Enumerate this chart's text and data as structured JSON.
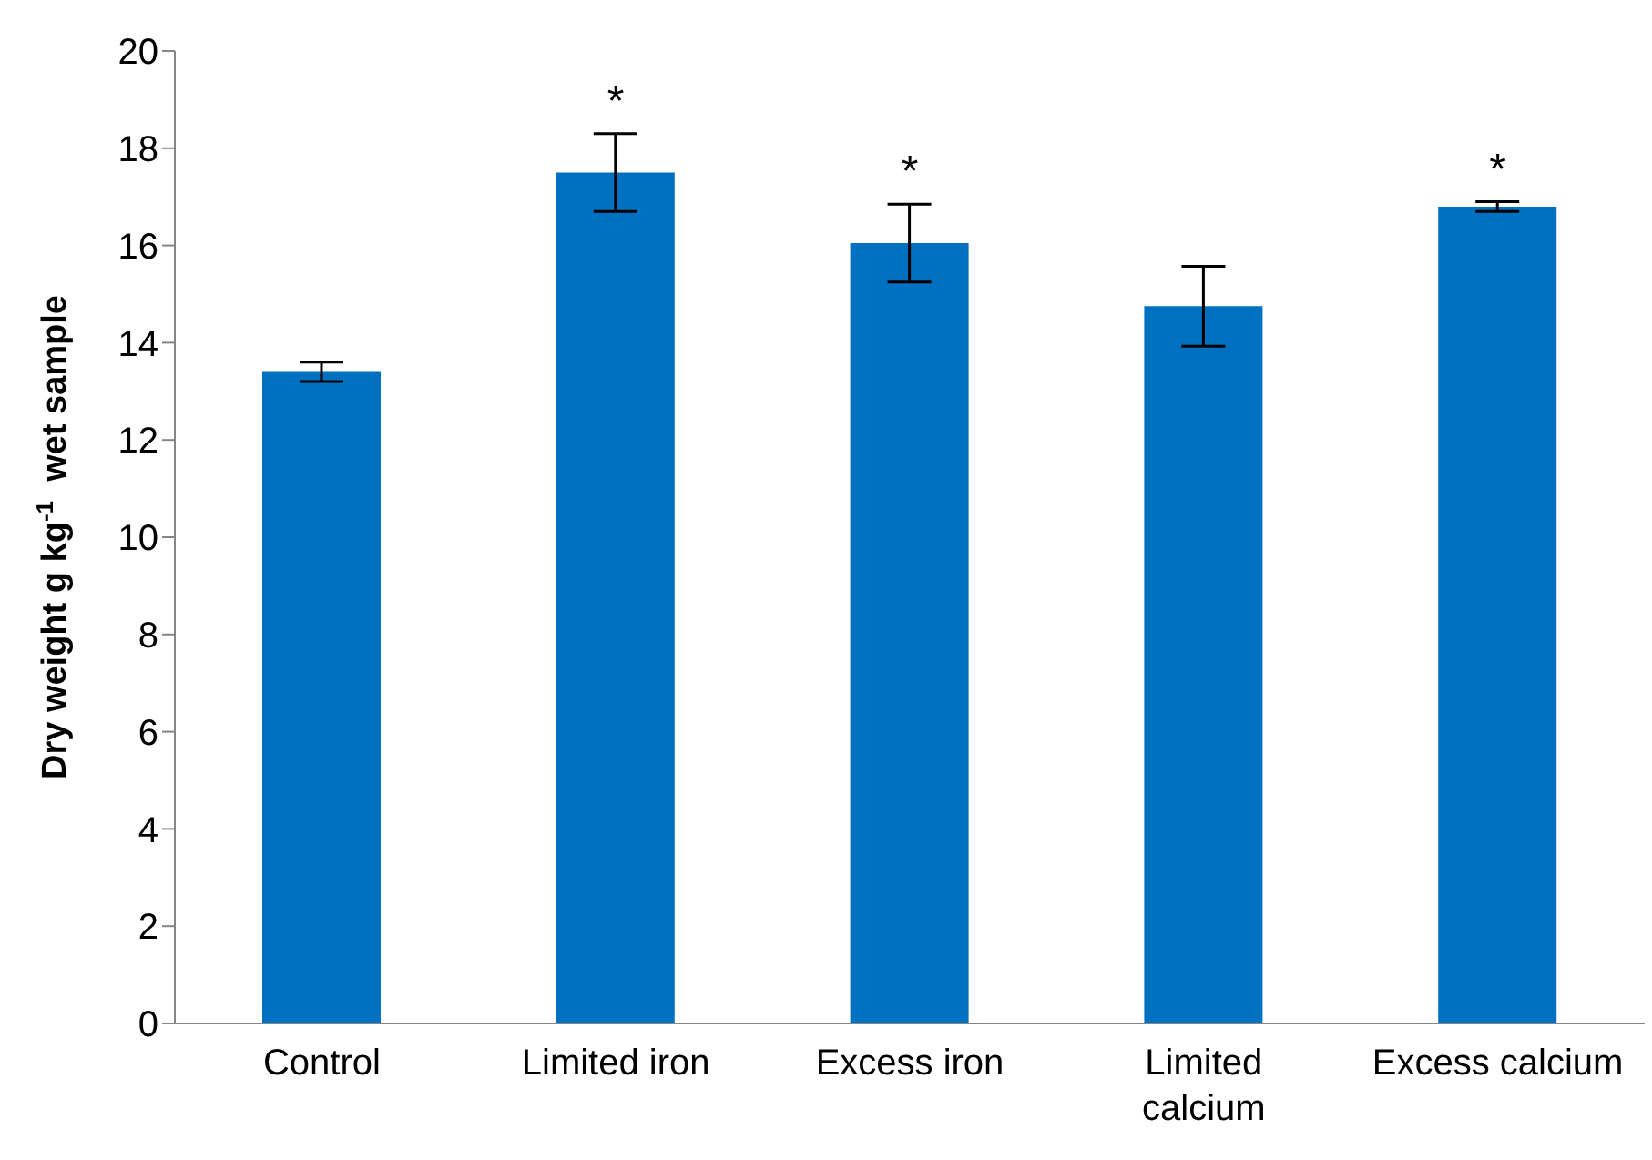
{
  "chart_data": {
    "type": "bar",
    "ylabel": "Dry weight g kg$^{-1}$  wet sample",
    "categories": [
      "Control",
      "Limited iron",
      "Excess iron",
      "Limited calcium",
      "Excess calcium"
    ],
    "values": [
      13.4,
      17.5,
      16.05,
      14.75,
      16.8
    ],
    "errors": [
      0.2,
      0.8,
      0.8,
      0.82,
      0.1
    ],
    "color": "#0070c0",
    "ylim": [
      0,
      20
    ],
    "yticks": [
      0,
      2,
      4,
      6,
      8,
      10,
      12,
      14,
      16,
      18,
      20
    ],
    "grid": false,
    "annotations": [
      {
        "text": "*",
        "x": "Limited iron",
        "y": 17.5
      },
      {
        "text": "*",
        "x": "Excess iron",
        "y": 16.05
      },
      {
        "text": "*",
        "x": "Excess calcium",
        "y": 16.8
      }
    ]
  }
}
